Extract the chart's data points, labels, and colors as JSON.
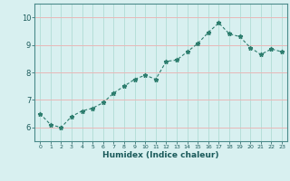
{
  "x": [
    0,
    1,
    2,
    3,
    4,
    5,
    6,
    7,
    8,
    9,
    10,
    11,
    12,
    13,
    14,
    15,
    16,
    17,
    18,
    19,
    20,
    21,
    22,
    23
  ],
  "y": [
    6.5,
    6.1,
    6.0,
    6.4,
    6.6,
    6.7,
    6.9,
    7.25,
    7.5,
    7.75,
    7.9,
    7.75,
    8.4,
    8.45,
    8.75,
    9.05,
    9.45,
    9.8,
    9.4,
    9.3,
    8.9,
    8.65,
    8.85,
    8.75
  ],
  "line_color": "#2d7d6e",
  "marker": "*",
  "marker_size": 3.5,
  "bg_color": "#d8f0f0",
  "axis_color": "#4a8a8a",
  "xlabel": "Humidex (Indice chaleur)",
  "xlim": [
    -0.5,
    23.5
  ],
  "ylim": [
    5.5,
    10.5
  ],
  "yticks": [
    6,
    7,
    8,
    9,
    10
  ],
  "xticks": [
    0,
    1,
    2,
    3,
    4,
    5,
    6,
    7,
    8,
    9,
    10,
    11,
    12,
    13,
    14,
    15,
    16,
    17,
    18,
    19,
    20,
    21,
    22,
    23
  ],
  "xlabel_color": "#1a5a5a",
  "tick_color": "#1a5a5a",
  "vgrid_color": "#a8d8d0",
  "hgrid_color": "#e8b8b8"
}
